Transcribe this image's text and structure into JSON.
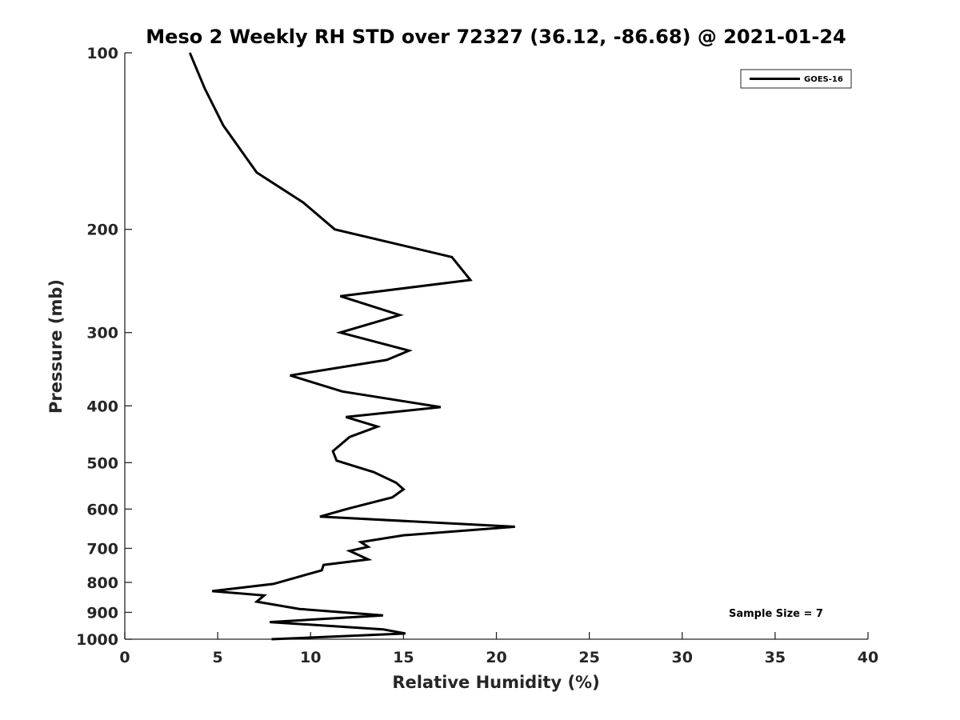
{
  "chart_data": {
    "type": "line",
    "title": "Meso 2 Weekly RH STD over 72327 (36.12, -86.68) @ 2021-01-24",
    "xlabel": "Relative Humidity (%)",
    "ylabel": "Pressure (mb)",
    "xlim": [
      0,
      40
    ],
    "ylim": [
      100,
      1000
    ],
    "y_scale": "log",
    "y_reversed": true,
    "grid": false,
    "x_ticks": [
      0,
      5,
      10,
      15,
      20,
      25,
      30,
      35,
      40
    ],
    "y_ticks": [
      100,
      200,
      300,
      400,
      500,
      600,
      700,
      800,
      900,
      1000
    ],
    "legend": {
      "position": "top-right",
      "entries": [
        "GOES-16"
      ]
    },
    "annotation": "Sample Size = 7",
    "series": [
      {
        "name": "GOES-16",
        "color": "#000000",
        "rh": [
          3.5,
          4.3,
          5.3,
          7.1,
          9.6,
          11.3,
          17.6,
          18.6,
          11.6,
          14.8,
          11.6,
          15.3,
          14.1,
          8.9,
          11.7,
          17.0,
          11.9,
          13.6,
          12.1,
          11.2,
          11.4,
          13.4,
          14.6,
          15.0,
          14.4,
          12.0,
          10.5,
          21.0,
          15.0,
          12.7,
          13.1,
          12.1,
          13.1,
          10.7,
          10.6,
          8.0,
          4.7,
          7.5,
          7.1,
          9.4,
          13.9,
          7.8,
          13.9,
          15.1,
          7.9
        ],
        "pressure": [
          100,
          115,
          133,
          160,
          180,
          200,
          223,
          244,
          260,
          280,
          300,
          322,
          334,
          355,
          378,
          402,
          418,
          434,
          452,
          478,
          496,
          519,
          541,
          555,
          573,
          599,
          618,
          643,
          665,
          683,
          696,
          707,
          731,
          747,
          763,
          805,
          828,
          842,
          863,
          888,
          911,
          935,
          962,
          978,
          1000
        ]
      }
    ]
  }
}
